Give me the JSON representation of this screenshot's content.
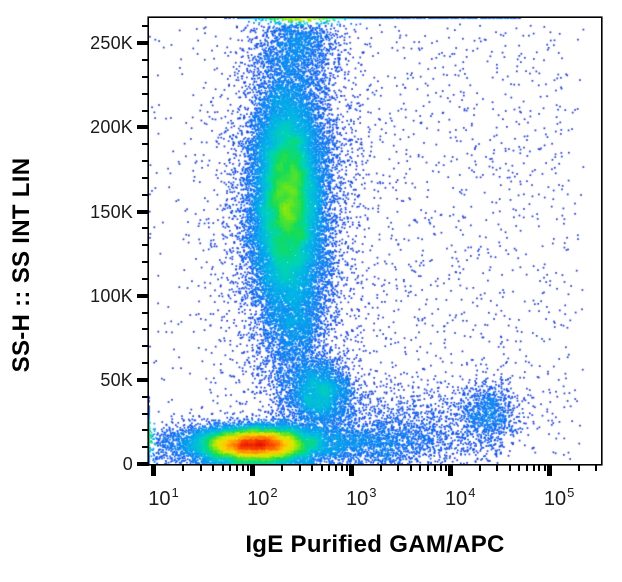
{
  "chart_data": {
    "type": "density_scatter",
    "title": "",
    "xlabel": "IgE Purified GAM/APC",
    "ylabel": "SS-H :: SS INT LIN",
    "x_scale": "log10",
    "y_scale": "linear",
    "xlim": [
      9,
      335000
    ],
    "ylim": [
      0,
      265000
    ],
    "x_major_ticks": [
      10,
      100,
      1000,
      10000,
      100000
    ],
    "x_tick_base": "10",
    "x_tick_exponents": [
      "1",
      "2",
      "3",
      "4",
      "5"
    ],
    "y_major_ticks": [
      0,
      50000,
      100000,
      150000,
      200000,
      250000
    ],
    "y_tick_labels": [
      "0",
      "50K",
      "100K",
      "150K",
      "200K",
      "250K"
    ],
    "y_major_step": 50000,
    "y_minor_step": 10000,
    "grid": false,
    "legend": false,
    "density_scale_gamma": 0.45,
    "colormap": "jet",
    "colormap_stops": [
      {
        "v": 0.0,
        "color": "#2424aa"
      },
      {
        "v": 0.1,
        "color": "#1f3fd4"
      },
      {
        "v": 0.2,
        "color": "#1160ee"
      },
      {
        "v": 0.3,
        "color": "#0b8df0"
      },
      {
        "v": 0.4,
        "color": "#00b4e6"
      },
      {
        "v": 0.48,
        "color": "#00d4b4"
      },
      {
        "v": 0.55,
        "color": "#15dc5a"
      },
      {
        "v": 0.63,
        "color": "#7ce815"
      },
      {
        "v": 0.7,
        "color": "#d8e800"
      },
      {
        "v": 0.78,
        "color": "#ffd000"
      },
      {
        "v": 0.86,
        "color": "#ff9000"
      },
      {
        "v": 0.93,
        "color": "#ff4800"
      },
      {
        "v": 1.0,
        "color": "#e11400"
      }
    ],
    "populations": [
      {
        "name": "lymphocytes_debris",
        "count": 16000,
        "x": {
          "dist": "lognormal",
          "log_mean": 2.03,
          "log_sigma": 0.3
        },
        "y": {
          "dist": "normal",
          "mean": 11500,
          "sigma": 5200
        }
      },
      {
        "name": "bottom_right_smear",
        "count": 2000,
        "x": {
          "dist": "lognormal",
          "log_mean": 2.95,
          "log_sigma": 0.55
        },
        "y": {
          "dist": "normal",
          "mean": 12500,
          "sigma": 6500
        }
      },
      {
        "name": "granulocytes",
        "count": 21000,
        "x": {
          "dist": "lognormal",
          "log_mean": 2.36,
          "log_sigma": 0.18
        },
        "y": {
          "dist": "normal",
          "mean": 157000,
          "sigma": 36000
        }
      },
      {
        "name": "granulocytes_halo",
        "count": 5000,
        "x": {
          "dist": "lognormal",
          "log_mean": 2.38,
          "log_sigma": 0.34
        },
        "y": {
          "dist": "normal",
          "mean": 155000,
          "sigma": 62000
        }
      },
      {
        "name": "bridge_column",
        "count": 1700,
        "x": {
          "dist": "lognormal",
          "log_mean": 2.45,
          "log_sigma": 0.17
        },
        "y": {
          "dist": "normal",
          "mean": 76000,
          "sigma": 26000
        }
      },
      {
        "name": "monocytes",
        "count": 2600,
        "x": {
          "dist": "lognormal",
          "log_mean": 2.7,
          "log_sigma": 0.16
        },
        "y": {
          "dist": "normal",
          "mean": 41500,
          "sigma": 9500
        }
      },
      {
        "name": "ige_positive_cluster",
        "count": 900,
        "x": {
          "dist": "lognormal",
          "log_mean": 4.38,
          "log_sigma": 0.16
        },
        "y": {
          "dist": "normal",
          "mean": 30000,
          "sigma": 10500
        }
      },
      {
        "name": "top_pileup_core",
        "count": 950,
        "x": {
          "dist": "lognormal",
          "log_mean": 2.5,
          "log_sigma": 0.28
        },
        "y": {
          "dist": "pileup_top"
        }
      },
      {
        "name": "top_pileup_spread",
        "count": 320,
        "x": {
          "dist": "uniform_log",
          "log_min": 2.3,
          "log_max": 4.75
        },
        "y": {
          "dist": "pileup_top"
        }
      },
      {
        "name": "top_edge_cloud",
        "count": 1100,
        "x": {
          "dist": "lognormal",
          "log_mean": 2.48,
          "log_sigma": 0.2
        },
        "y": {
          "dist": "normal",
          "mean": 249000,
          "sigma": 11000
        }
      },
      {
        "name": "background_scatter",
        "count": 900,
        "x": {
          "dist": "uniform_log",
          "log_min": 0.96,
          "log_max": 5.35
        },
        "y": {
          "dist": "uniform",
          "min": 1000,
          "max": 262000
        }
      },
      {
        "name": "right_mid_scatter",
        "count": 650,
        "x": {
          "dist": "uniform_log",
          "log_min": 2.9,
          "log_max": 5.2
        },
        "y": {
          "dist": "uniform",
          "min": 15000,
          "max": 255000
        }
      },
      {
        "name": "bottom_mid_scatter",
        "count": 1100,
        "x": {
          "dist": "lognormal",
          "log_mean": 3.35,
          "log_sigma": 0.5
        },
        "y": {
          "dist": "normal",
          "mean": 22000,
          "sigma": 13000
        }
      },
      {
        "name": "low_left_band",
        "count": 550,
        "x": {
          "dist": "uniform_log",
          "log_min": 0.96,
          "log_max": 1.75
        },
        "y": {
          "dist": "normal",
          "mean": 12000,
          "sigma": 7000
        }
      },
      {
        "name": "left_edge_pileup",
        "count": 380,
        "x": {
          "dist": "edge_left"
        },
        "y": {
          "dist": "normal",
          "mean": 17000,
          "sigma": 8000
        }
      }
    ]
  }
}
